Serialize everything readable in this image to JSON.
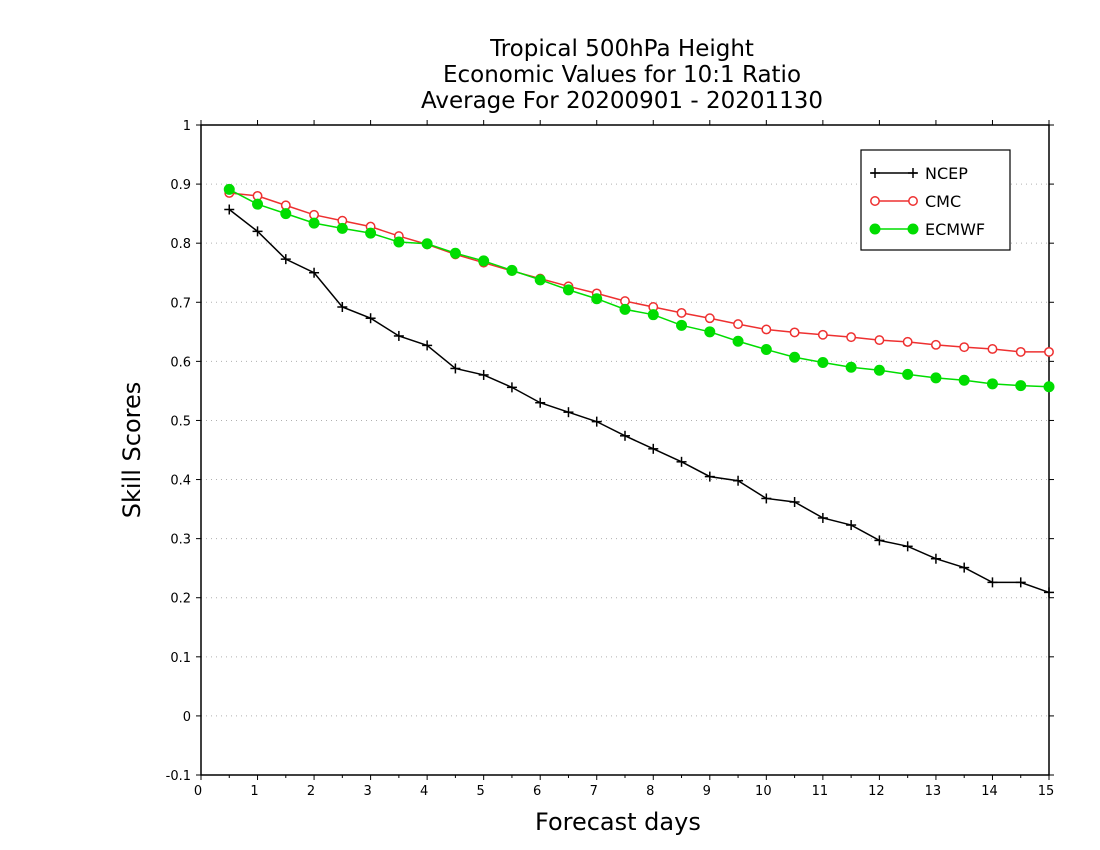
{
  "title_lines": [
    "Tropical 500hPa Height",
    "Economic Values for 10:1 Ratio",
    "Average For 20200901 - 20201130"
  ],
  "chart_data": {
    "type": "line",
    "title": "Tropical 500hPa Height / Economic Values for 10:1 Ratio / Average For 20200901 - 20201130",
    "xlabel": "Forecast days",
    "ylabel": "Skill Scores",
    "xlim": [
      0,
      15
    ],
    "ylim": [
      -0.1,
      1
    ],
    "xticks": [
      0,
      1,
      2,
      3,
      4,
      5,
      6,
      7,
      8,
      9,
      10,
      11,
      12,
      13,
      14,
      15
    ],
    "yticks": [
      -0.1,
      0,
      0.1,
      0.2,
      0.3,
      0.4,
      0.5,
      0.6,
      0.7,
      0.8,
      0.9,
      1
    ],
    "ytick_labels": [
      "-0.1",
      "0",
      "0.1",
      "0.2",
      "0.3",
      "0.4",
      "0.5",
      "0.6",
      "0.7",
      "0.8",
      "0.9",
      "1"
    ],
    "grid": "horizontal dotted",
    "legend_position": "top-right",
    "x": [
      0.5,
      1,
      1.5,
      2,
      2.5,
      3,
      3.5,
      4,
      4.5,
      5,
      5.5,
      6,
      6.5,
      7,
      7.5,
      8,
      8.5,
      9,
      9.5,
      10,
      10.5,
      11,
      11.5,
      12,
      12.5,
      13,
      13.5,
      14,
      14.5,
      15
    ],
    "series": [
      {
        "name": "NCEP",
        "color": "#000000",
        "marker": "plus",
        "values": [
          0.857,
          0.82,
          0.773,
          0.75,
          0.692,
          0.673,
          0.643,
          0.627,
          0.588,
          0.577,
          0.556,
          0.53,
          0.514,
          0.498,
          0.474,
          0.452,
          0.43,
          0.405,
          0.398,
          0.368,
          0.362,
          0.335,
          0.323,
          0.297,
          0.287,
          0.266,
          0.251,
          0.226,
          0.226,
          0.209
        ]
      },
      {
        "name": "CMC",
        "color": "#ee3030",
        "marker": "open-circle",
        "values": [
          0.885,
          0.88,
          0.864,
          0.848,
          0.838,
          0.828,
          0.812,
          0.798,
          0.781,
          0.767,
          0.753,
          0.74,
          0.727,
          0.715,
          0.702,
          0.692,
          0.682,
          0.673,
          0.663,
          0.654,
          0.649,
          0.645,
          0.641,
          0.636,
          0.633,
          0.628,
          0.624,
          0.621,
          0.616,
          0.616
        ]
      },
      {
        "name": "ECMWF",
        "color": "#00dd00",
        "marker": "filled-circle",
        "values": [
          0.891,
          0.866,
          0.85,
          0.834,
          0.825,
          0.817,
          0.802,
          0.799,
          0.783,
          0.77,
          0.754,
          0.738,
          0.721,
          0.706,
          0.688,
          0.679,
          0.661,
          0.65,
          0.634,
          0.62,
          0.607,
          0.598,
          0.59,
          0.585,
          0.578,
          0.572,
          0.568,
          0.562,
          0.559,
          0.557
        ]
      }
    ]
  }
}
